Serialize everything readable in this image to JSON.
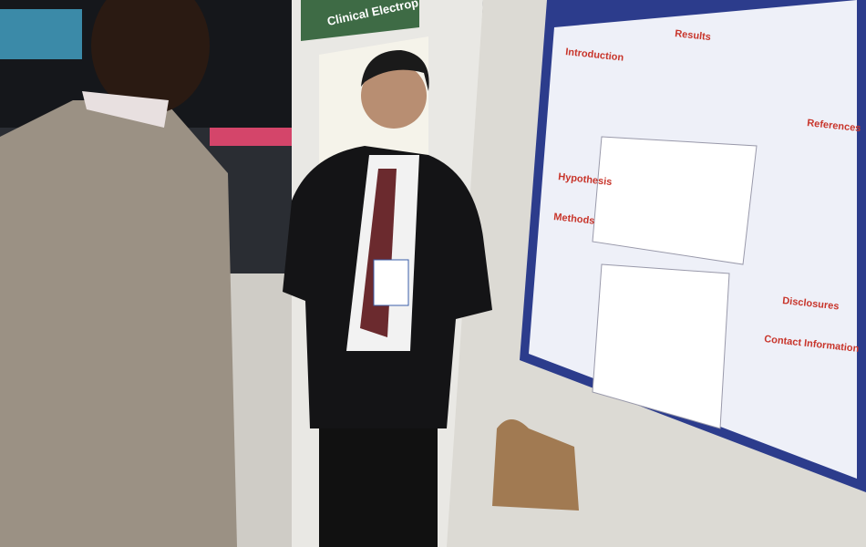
{
  "banner": {
    "text": "Clinical Electrop"
  },
  "poster": {
    "sections": [
      "Introduction",
      "Results",
      "Hypothesis",
      "Methods",
      "References",
      "Disclosures",
      "Contact Information"
    ]
  }
}
